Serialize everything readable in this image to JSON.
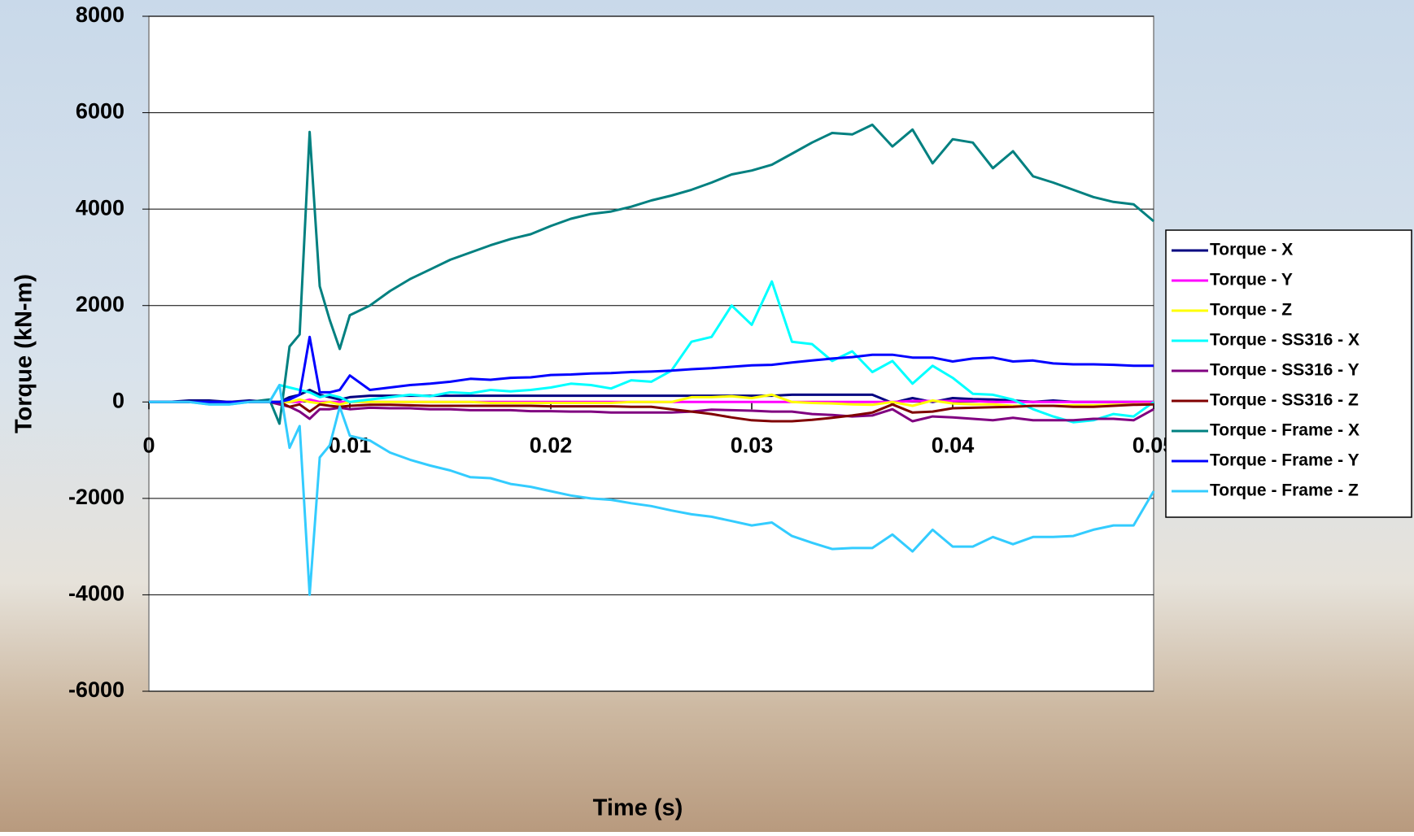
{
  "chart_data": {
    "type": "line",
    "x_label": "Time (s)",
    "y_label": "Torque (kN-m)",
    "x": [
      0,
      0.001,
      0.002,
      0.003,
      0.004,
      0.005,
      0.006,
      0.0065,
      0.007,
      0.0075,
      0.008,
      0.0085,
      0.009,
      0.0095,
      0.01,
      0.011,
      0.012,
      0.013,
      0.014,
      0.015,
      0.016,
      0.017,
      0.018,
      0.019,
      0.02,
      0.021,
      0.022,
      0.023,
      0.024,
      0.025,
      0.026,
      0.027,
      0.028,
      0.029,
      0.03,
      0.031,
      0.032,
      0.033,
      0.034,
      0.035,
      0.036,
      0.037,
      0.038,
      0.039,
      0.04,
      0.041,
      0.042,
      0.043,
      0.044,
      0.045,
      0.046,
      0.047,
      0.048,
      0.049,
      0.05
    ],
    "xlim": [
      0,
      0.05
    ],
    "xticks": [
      0,
      0.01,
      0.02,
      0.03,
      0.04,
      0.05
    ],
    "ylim": [
      -6000,
      8000
    ],
    "yticks": [
      -6000,
      -4000,
      -2000,
      0,
      2000,
      4000,
      6000,
      8000
    ],
    "grid": true,
    "legend": "right",
    "series": [
      {
        "name": "Torque - X",
        "color": "#000080",
        "values": [
          0,
          0,
          30,
          30,
          0,
          30,
          0,
          0,
          100,
          150,
          250,
          150,
          100,
          50,
          100,
          130,
          130,
          130,
          130,
          130,
          130,
          130,
          130,
          130,
          130,
          130,
          130,
          130,
          130,
          130,
          130,
          130,
          130,
          130,
          130,
          130,
          150,
          150,
          150,
          150,
          150,
          -20,
          80,
          0,
          80,
          60,
          50,
          30,
          0,
          30,
          0,
          0,
          0,
          0,
          0
        ]
      },
      {
        "name": "Torque - Y",
        "color": "#FF00FF",
        "values": [
          0,
          0,
          0,
          0,
          0,
          0,
          0,
          0,
          0,
          0,
          50,
          0,
          0,
          0,
          0,
          0,
          0,
          0,
          0,
          0,
          0,
          0,
          0,
          0,
          0,
          0,
          0,
          0,
          0,
          0,
          0,
          0,
          0,
          0,
          0,
          0,
          0,
          0,
          0,
          0,
          0,
          0,
          20,
          20,
          20,
          20,
          0,
          0,
          0,
          0,
          0,
          0,
          0,
          0,
          0
        ]
      },
      {
        "name": "Torque - Z",
        "color": "#FFFF00",
        "values": [
          0,
          0,
          0,
          0,
          0,
          0,
          0,
          0,
          0,
          50,
          0,
          -30,
          0,
          -50,
          0,
          0,
          0,
          0,
          0,
          0,
          0,
          -20,
          -20,
          -20,
          -20,
          -20,
          -20,
          -20,
          0,
          0,
          0,
          100,
          100,
          120,
          80,
          150,
          0,
          -20,
          -30,
          -50,
          -60,
          0,
          -80,
          30,
          -30,
          -50,
          -50,
          -80,
          -80,
          -80,
          -70,
          -70,
          -60,
          -50,
          -40
        ]
      },
      {
        "name": "Torque - SS316 - X",
        "color": "#00FFFF",
        "values": [
          0,
          0,
          0,
          -50,
          -50,
          0,
          0,
          350,
          300,
          250,
          200,
          100,
          150,
          100,
          0,
          50,
          100,
          150,
          120,
          200,
          180,
          250,
          220,
          250,
          300,
          380,
          350,
          280,
          450,
          420,
          650,
          1250,
          1350,
          2000,
          1600,
          2500,
          1250,
          1200,
          850,
          1050,
          620,
          850,
          380,
          750,
          500,
          170,
          150,
          50,
          -150,
          -300,
          -420,
          -380,
          -250,
          -300,
          0
        ]
      },
      {
        "name": "Torque - SS316 - Y",
        "color": "#800080",
        "values": [
          0,
          0,
          0,
          0,
          0,
          0,
          0,
          -50,
          -100,
          -200,
          -350,
          -150,
          -150,
          -120,
          -150,
          -120,
          -130,
          -130,
          -150,
          -150,
          -170,
          -170,
          -170,
          -190,
          -190,
          -200,
          -200,
          -220,
          -220,
          -220,
          -220,
          -200,
          -160,
          -170,
          -180,
          -200,
          -200,
          -250,
          -270,
          -300,
          -280,
          -150,
          -400,
          -300,
          -320,
          -350,
          -380,
          -330,
          -380,
          -380,
          -380,
          -350,
          -350,
          -380,
          -150
        ]
      },
      {
        "name": "Torque - SS316 - Z",
        "color": "#800000",
        "values": [
          0,
          0,
          0,
          0,
          0,
          0,
          0,
          0,
          -100,
          -50,
          -200,
          -50,
          -80,
          -100,
          -80,
          -60,
          -60,
          -70,
          -80,
          -80,
          -80,
          -80,
          -80,
          -80,
          -90,
          -90,
          -90,
          -90,
          -100,
          -100,
          -150,
          -200,
          -250,
          -320,
          -380,
          -400,
          -400,
          -370,
          -330,
          -280,
          -220,
          -50,
          -220,
          -200,
          -130,
          -120,
          -110,
          -100,
          -80,
          -80,
          -100,
          -100,
          -80,
          -60,
          -50
        ]
      },
      {
        "name": "Torque - Frame - X",
        "color": "#008080",
        "values": [
          0,
          0,
          0,
          0,
          0,
          0,
          50,
          -450,
          1150,
          1400,
          5600,
          2400,
          1700,
          1100,
          1800,
          2000,
          2300,
          2550,
          2750,
          2950,
          3100,
          3250,
          3380,
          3480,
          3650,
          3800,
          3900,
          3950,
          4050,
          4180,
          4280,
          4400,
          4550,
          4720,
          4800,
          4920,
          5150,
          5380,
          5580,
          5550,
          5750,
          5300,
          5650,
          4950,
          5450,
          5380,
          4850,
          5200,
          4680,
          4550,
          4400,
          4250,
          4150,
          4100,
          3750
        ]
      },
      {
        "name": "Torque - Frame - Y",
        "color": "#0000FF",
        "values": [
          0,
          0,
          0,
          0,
          0,
          0,
          0,
          0,
          50,
          150,
          1350,
          200,
          200,
          250,
          550,
          250,
          300,
          350,
          380,
          420,
          480,
          460,
          500,
          510,
          560,
          570,
          590,
          600,
          620,
          630,
          650,
          680,
          700,
          730,
          760,
          770,
          820,
          860,
          900,
          930,
          980,
          980,
          920,
          920,
          840,
          900,
          920,
          840,
          860,
          800,
          780,
          780,
          770,
          750,
          750
        ]
      },
      {
        "name": "Torque - Frame - Z",
        "color": "#33CCFF",
        "values": [
          0,
          0,
          0,
          -50,
          -50,
          0,
          0,
          350,
          -950,
          -500,
          -4000,
          -1150,
          -900,
          -100,
          -700,
          -800,
          -1050,
          -1200,
          -1320,
          -1420,
          -1560,
          -1580,
          -1700,
          -1760,
          -1850,
          -1940,
          -2000,
          -2030,
          -2100,
          -2160,
          -2250,
          -2330,
          -2380,
          -2470,
          -2560,
          -2500,
          -2780,
          -2920,
          -3050,
          -3030,
          -3030,
          -2750,
          -3100,
          -2650,
          -3000,
          -3000,
          -2800,
          -2950,
          -2800,
          -2800,
          -2780,
          -2650,
          -2560,
          -2560,
          -1850
        ]
      }
    ]
  }
}
